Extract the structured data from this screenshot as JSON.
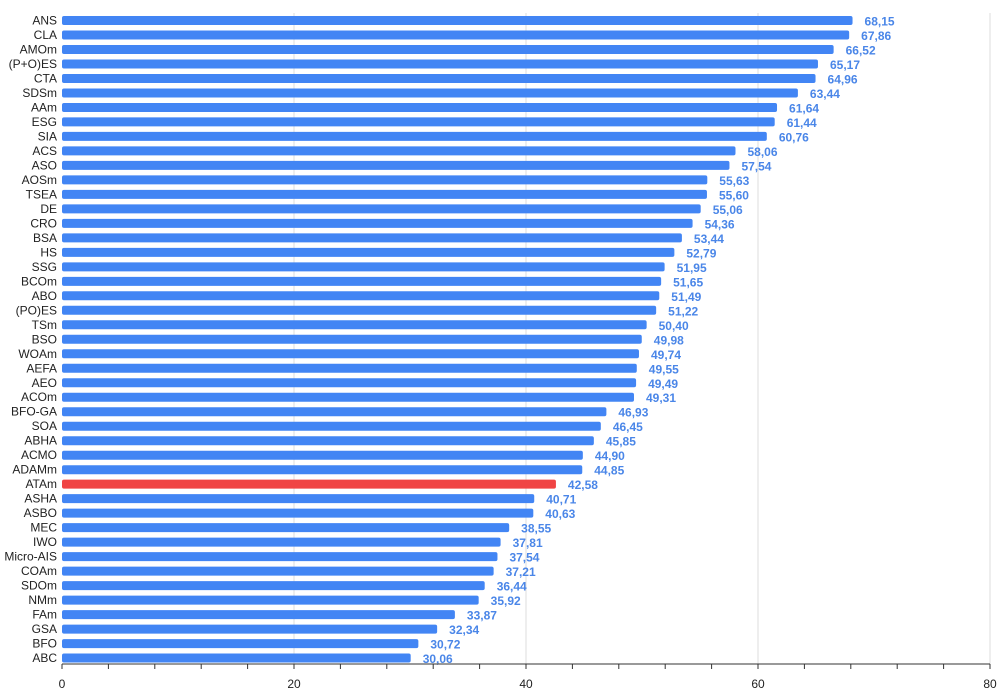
{
  "chart_data": {
    "type": "bar",
    "orientation": "horizontal",
    "categories": [
      "ANS",
      "CLA",
      "AMOm",
      "(P+O)ES",
      "CTA",
      "SDSm",
      "AAm",
      "ESG",
      "SIA",
      "ACS",
      "ASO",
      "AOSm",
      "TSEA",
      "DE",
      "CRO",
      "BSA",
      "HS",
      "SSG",
      "BCOm",
      "ABO",
      "(PO)ES",
      "TSm",
      "BSO",
      "WOAm",
      "AEFA",
      "AEO",
      "ACOm",
      "BFO-GA",
      "SOA",
      "ABHA",
      "ACMO",
      "ADAMm",
      "ATAm",
      "ASHA",
      "ASBO",
      "MEC",
      "IWO",
      "Micro-AIS",
      "COAm",
      "SDOm",
      "NMm",
      "FAm",
      "GSA",
      "BFO",
      "ABC"
    ],
    "values": [
      68.15,
      67.86,
      66.52,
      65.17,
      64.96,
      63.44,
      61.64,
      61.44,
      60.76,
      58.06,
      57.54,
      55.63,
      55.6,
      55.06,
      54.36,
      53.44,
      52.79,
      51.95,
      51.65,
      51.49,
      51.22,
      50.4,
      49.98,
      49.74,
      49.55,
      49.49,
      49.31,
      46.93,
      46.45,
      45.85,
      44.9,
      44.85,
      42.58,
      40.71,
      40.63,
      38.55,
      37.81,
      37.54,
      37.21,
      36.44,
      35.92,
      33.87,
      32.34,
      30.72,
      30.06
    ],
    "value_labels": [
      "68,15",
      "67,86",
      "66,52",
      "65,17",
      "64,96",
      "63,44",
      "61,64",
      "61,44",
      "60,76",
      "58,06",
      "57,54",
      "55,63",
      "55,60",
      "55,06",
      "54,36",
      "53,44",
      "52,79",
      "51,95",
      "51,65",
      "51,49",
      "51,22",
      "50,40",
      "49,98",
      "49,74",
      "49,55",
      "49,49",
      "49,31",
      "46,93",
      "46,45",
      "45,85",
      "44,90",
      "44,85",
      "42,58",
      "40,71",
      "40,63",
      "38,55",
      "37,81",
      "37,54",
      "37,21",
      "36,44",
      "35,92",
      "33,87",
      "32,34",
      "30,72",
      "30,06"
    ],
    "highlight_category": "ATAm",
    "xlim": [
      0,
      80
    ],
    "xticks": [
      0,
      20,
      40,
      60,
      80
    ],
    "minor_tick_step": 4,
    "grid": true,
    "colors": {
      "bar": "#4285f4",
      "highlight": "#f04444",
      "value_label": "#4a86e8",
      "grid": "#dddddd",
      "axis": "#333333"
    },
    "title": "",
    "xlabel": "",
    "ylabel": ""
  }
}
